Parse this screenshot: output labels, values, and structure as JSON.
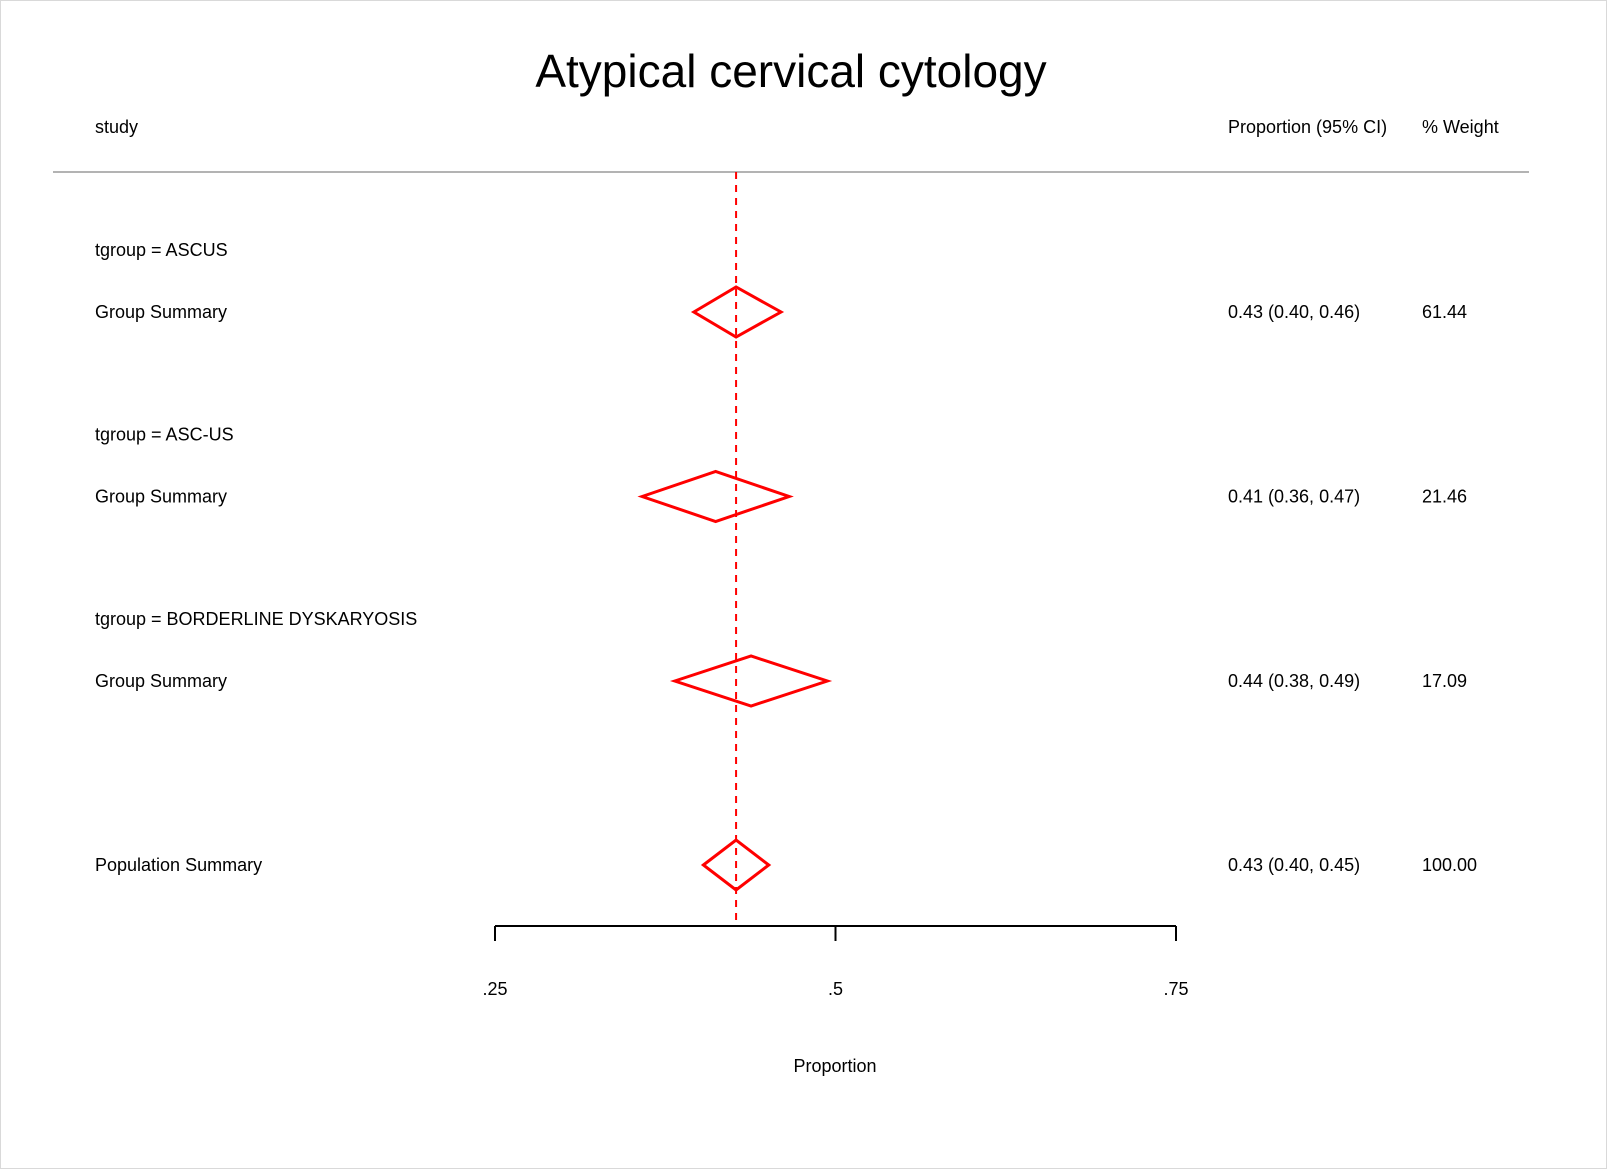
{
  "chart_data": {
    "type": "forest",
    "title": "Atypical cervical cytology",
    "columns": {
      "study": "study",
      "estimate": "Proportion (95% CI)",
      "weight": "% Weight"
    },
    "xlabel": "Proportion",
    "xlim": [
      0.25,
      0.75
    ],
    "xticks": [
      0.25,
      0.5,
      0.75
    ],
    "xtick_labels": [
      ".25",
      ".5",
      ".75"
    ],
    "reference_line": 0.427,
    "colors": {
      "diamond": "#ff0000",
      "reference_line": "#ff0000",
      "axis": "#000000",
      "header_rule": "#b3b3b3"
    },
    "groups": [
      {
        "header": "tgroup = ASCUS",
        "summary_label": "Group Summary",
        "estimate": 0.427,
        "lower": 0.396,
        "upper": 0.46,
        "ci_text": "0.43 (0.40, 0.46)",
        "weight_text": "61.44"
      },
      {
        "header": "tgroup = ASC-US",
        "summary_label": "Group Summary",
        "estimate": 0.412,
        "lower": 0.358,
        "upper": 0.466,
        "ci_text": "0.41 (0.36, 0.47)",
        "weight_text": "21.46"
      },
      {
        "header": "tgroup = BORDERLINE DYSKARYOSIS",
        "summary_label": "Group Summary",
        "estimate": 0.438,
        "lower": 0.382,
        "upper": 0.494,
        "ci_text": "0.44 (0.38, 0.49)",
        "weight_text": "17.09"
      }
    ],
    "overall": {
      "label": "Population Summary",
      "estimate": 0.427,
      "lower": 0.403,
      "upper": 0.451,
      "ci_text": "0.43 (0.40, 0.45)",
      "weight_text": "100.00"
    }
  }
}
